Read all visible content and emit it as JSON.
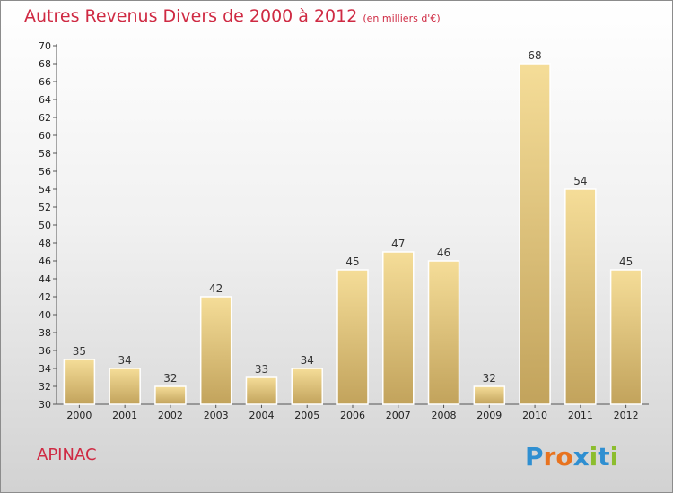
{
  "header": {
    "title": "Autres Revenus Divers de 2000 à 2012",
    "unit": "(en milliers d'€)"
  },
  "footer": {
    "commune": "APINAC",
    "logo_text": "Proxiti"
  },
  "colors": {
    "title": "#cf2a43",
    "bar_light": "#f5dd98",
    "bar_dark": "#c2a35c"
  },
  "chart_data": {
    "type": "bar",
    "title": "Autres Revenus Divers de 2000 à 2012",
    "xlabel": "",
    "ylabel": "",
    "categories": [
      "2000",
      "2001",
      "2002",
      "2003",
      "2004",
      "2005",
      "2006",
      "2007",
      "2008",
      "2009",
      "2010",
      "2011",
      "2012"
    ],
    "values": [
      35,
      34,
      32,
      42,
      33,
      34,
      45,
      47,
      46,
      32,
      68,
      54,
      45
    ],
    "ylim": [
      30,
      70
    ],
    "ytick_step": 2,
    "grid": false,
    "legend": "none"
  }
}
